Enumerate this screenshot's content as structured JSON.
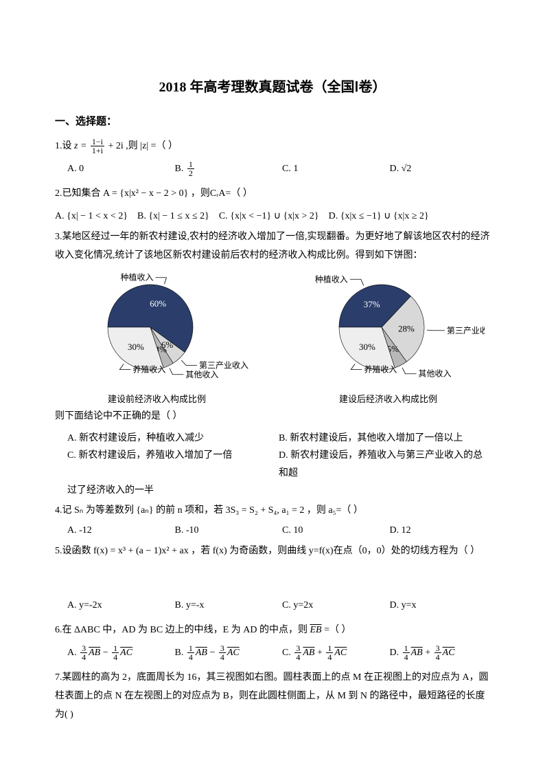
{
  "title": "2018 年高考理数真题试卷（全国Ⅰ卷）",
  "section1": "一、选择题：",
  "q1": {
    "stem_pre": "1.设 ",
    "formula": "z = ",
    "frac_n": "1−i",
    "frac_d": "1+i",
    "stem_post": " + 2i ,则 |z| =（    ）",
    "A": "A. 0",
    "B": "B. ",
    "B_frac_n": "1",
    "B_frac_d": "2",
    "C": "C. 1",
    "D": "D. √2"
  },
  "q2": {
    "stem": "2.已知集合  A = {x|x² − x − 2 > 0} ，则CᵣA=（    ）",
    "A": "A. {x| − 1 < x < 2}",
    "B": "B. {x| − 1 ≤ x ≤ 2}",
    "C": "C. {x|x < −1} ∪ {x|x > 2}",
    "D": "D. {x|x ≤ −1} ∪ {x|x ≥ 2}"
  },
  "q3": {
    "stem": "3.某地区经过一年的新农村建设,农村的经济收入增加了一倍,实现翻番。为更好地了解该地区农村的经济收入变化情况,统计了该地区新农村建设前后农村的经济收入构成比例。得到如下饼图：",
    "pie_before": {
      "caption": "建设前经济收入构成比例",
      "slices": [
        {
          "label": "种植收入",
          "value": 60,
          "color": "#2b3e6b",
          "text_color": "#ffffff",
          "label_side": "left"
        },
        {
          "label": "第三产业收入",
          "value": 6,
          "color": "#d8d8d8",
          "text_color": "#000000",
          "label_side": "right"
        },
        {
          "label": "其他收入",
          "value": 4,
          "color": "#b8b8b8",
          "text_color": "#000000",
          "label_side": "right"
        },
        {
          "label": "养殖收入",
          "value": 30,
          "color": "#eeeeee",
          "text_color": "#000000",
          "label_side": "right"
        }
      ],
      "bg": "#ffffff"
    },
    "pie_after": {
      "caption": "建设后经济收入构成比例",
      "slices": [
        {
          "label": "种植收入",
          "value": 37,
          "color": "#2b3e6b",
          "text_color": "#ffffff",
          "label_side": "left"
        },
        {
          "label": "第三产业收入",
          "value": 28,
          "color": "#d8d8d8",
          "text_color": "#000000",
          "label_side": "right"
        },
        {
          "label": "其他收入",
          "value": 5,
          "color": "#b8b8b8",
          "text_color": "#000000",
          "label_side": "right"
        },
        {
          "label": "养殖收入",
          "value": 30,
          "color": "#eeeeee",
          "text_color": "#000000",
          "label_side": "right"
        }
      ],
      "bg": "#ffffff"
    },
    "below": "则下面结论中不正确的是（    ）",
    "A": "A. 新农村建设后，种植收入减少",
    "B": "B. 新农村建设后，其他收入增加了一倍以上",
    "C": "C. 新农村建设后，养殖收入增加了一倍",
    "D": "D. 新农村建设后，养殖收入与第三产业收入的总和超",
    "D2": "过了经济收入的一半"
  },
  "q4": {
    "stem": "4.记 Sₙ 为等差数列 {aₙ} 的前 n 项和，若 3S₃ = S₂ + S₄, a₁ = 2 ，则 a₅=（    ）",
    "A": "A. -12",
    "B": "B. -10",
    "C": "C. 10",
    "D": "D. 12"
  },
  "q5": {
    "stem": "5.设函数 f(x) = x³ + (a − 1)x² + ax ，若 f(x) 为奇函数，则曲线 y=f(x)在点（0，0）处的切线方程为（    ）",
    "A": "A. y=-2x",
    "B": "B. y=-x",
    "C": "C. y=2x",
    "D": "D. y=x"
  },
  "q6": {
    "stem_pre": "6.在 ΔABC 中，AD 为 BC 边上的中线，E 为 AD 的中点，则 ",
    "vec": "EB",
    "stem_post": " =（    ）",
    "A": {
      "f1n": "3",
      "f1d": "4",
      "v1": "AB",
      "f2n": "1",
      "f2d": "4",
      "v2": "AC",
      "sign": "−",
      "pre": "A. "
    },
    "B": {
      "f1n": "1",
      "f1d": "4",
      "v1": "AB",
      "f2n": "3",
      "f2d": "4",
      "v2": "AC",
      "sign": "−",
      "pre": "B. "
    },
    "C": {
      "f1n": "3",
      "f1d": "4",
      "v1": "AB",
      "f2n": "1",
      "f2d": "4",
      "v2": "AC",
      "sign": "+",
      "pre": "C. "
    },
    "D": {
      "f1n": "1",
      "f1d": "4",
      "v1": "AB",
      "f2n": "3",
      "f2d": "4",
      "v2": "AC",
      "sign": "+",
      "pre": "D. "
    }
  },
  "q7": {
    "stem": "7.某圆柱的高为 2，底面周长为 16，其三视图如右图。圆柱表面上的点 M 在正视图上的对应点为 A，圆柱表面上的点 N 在左视图上的对应点为 B，则在此圆柱侧面上，从 M 到 N 的路径中，最短路径的长度为(    )"
  }
}
